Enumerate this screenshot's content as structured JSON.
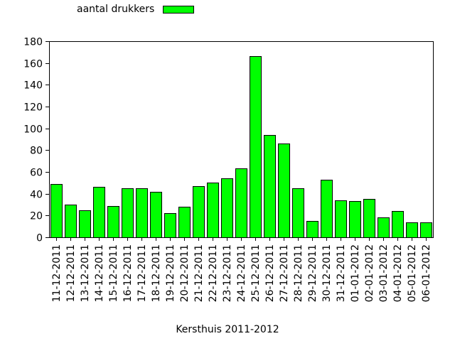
{
  "chart_data": {
    "type": "bar",
    "categories": [
      "11-12-2011",
      "12-12-2011",
      "13-12-2011",
      "14-12-2011",
      "15-12-2011",
      "16-12-2011",
      "17-12-2011",
      "18-12-2011",
      "19-12-2011",
      "20-12-2011",
      "21-12-2011",
      "22-12-2011",
      "23-12-2011",
      "24-12-2011",
      "25-12-2011",
      "26-12-2011",
      "27-12-2011",
      "28-12-2011",
      "29-12-2011",
      "30-12-2011",
      "31-12-2011",
      "01-01-2012",
      "02-01-2012",
      "03-01-2012",
      "04-01-2012",
      "05-01-2012",
      "06-01-2012"
    ],
    "series": [
      {
        "name": "aantal drukkers",
        "values": [
          49,
          30,
          25,
          46,
          29,
          45,
          45,
          42,
          22,
          28,
          47,
          50,
          54,
          63,
          166,
          94,
          86,
          45,
          15,
          53,
          34,
          33,
          35,
          18,
          24,
          14,
          14
        ]
      }
    ],
    "xlabel": "Kersthuis 2011-2012",
    "ylabel": "",
    "ylim": [
      0,
      180
    ],
    "yticks": [
      0,
      20,
      40,
      60,
      80,
      100,
      120,
      140,
      160,
      180
    ],
    "grid": false,
    "legend": "top-left",
    "colors": {
      "bar": "#00ff00",
      "outline": "#000000"
    }
  }
}
